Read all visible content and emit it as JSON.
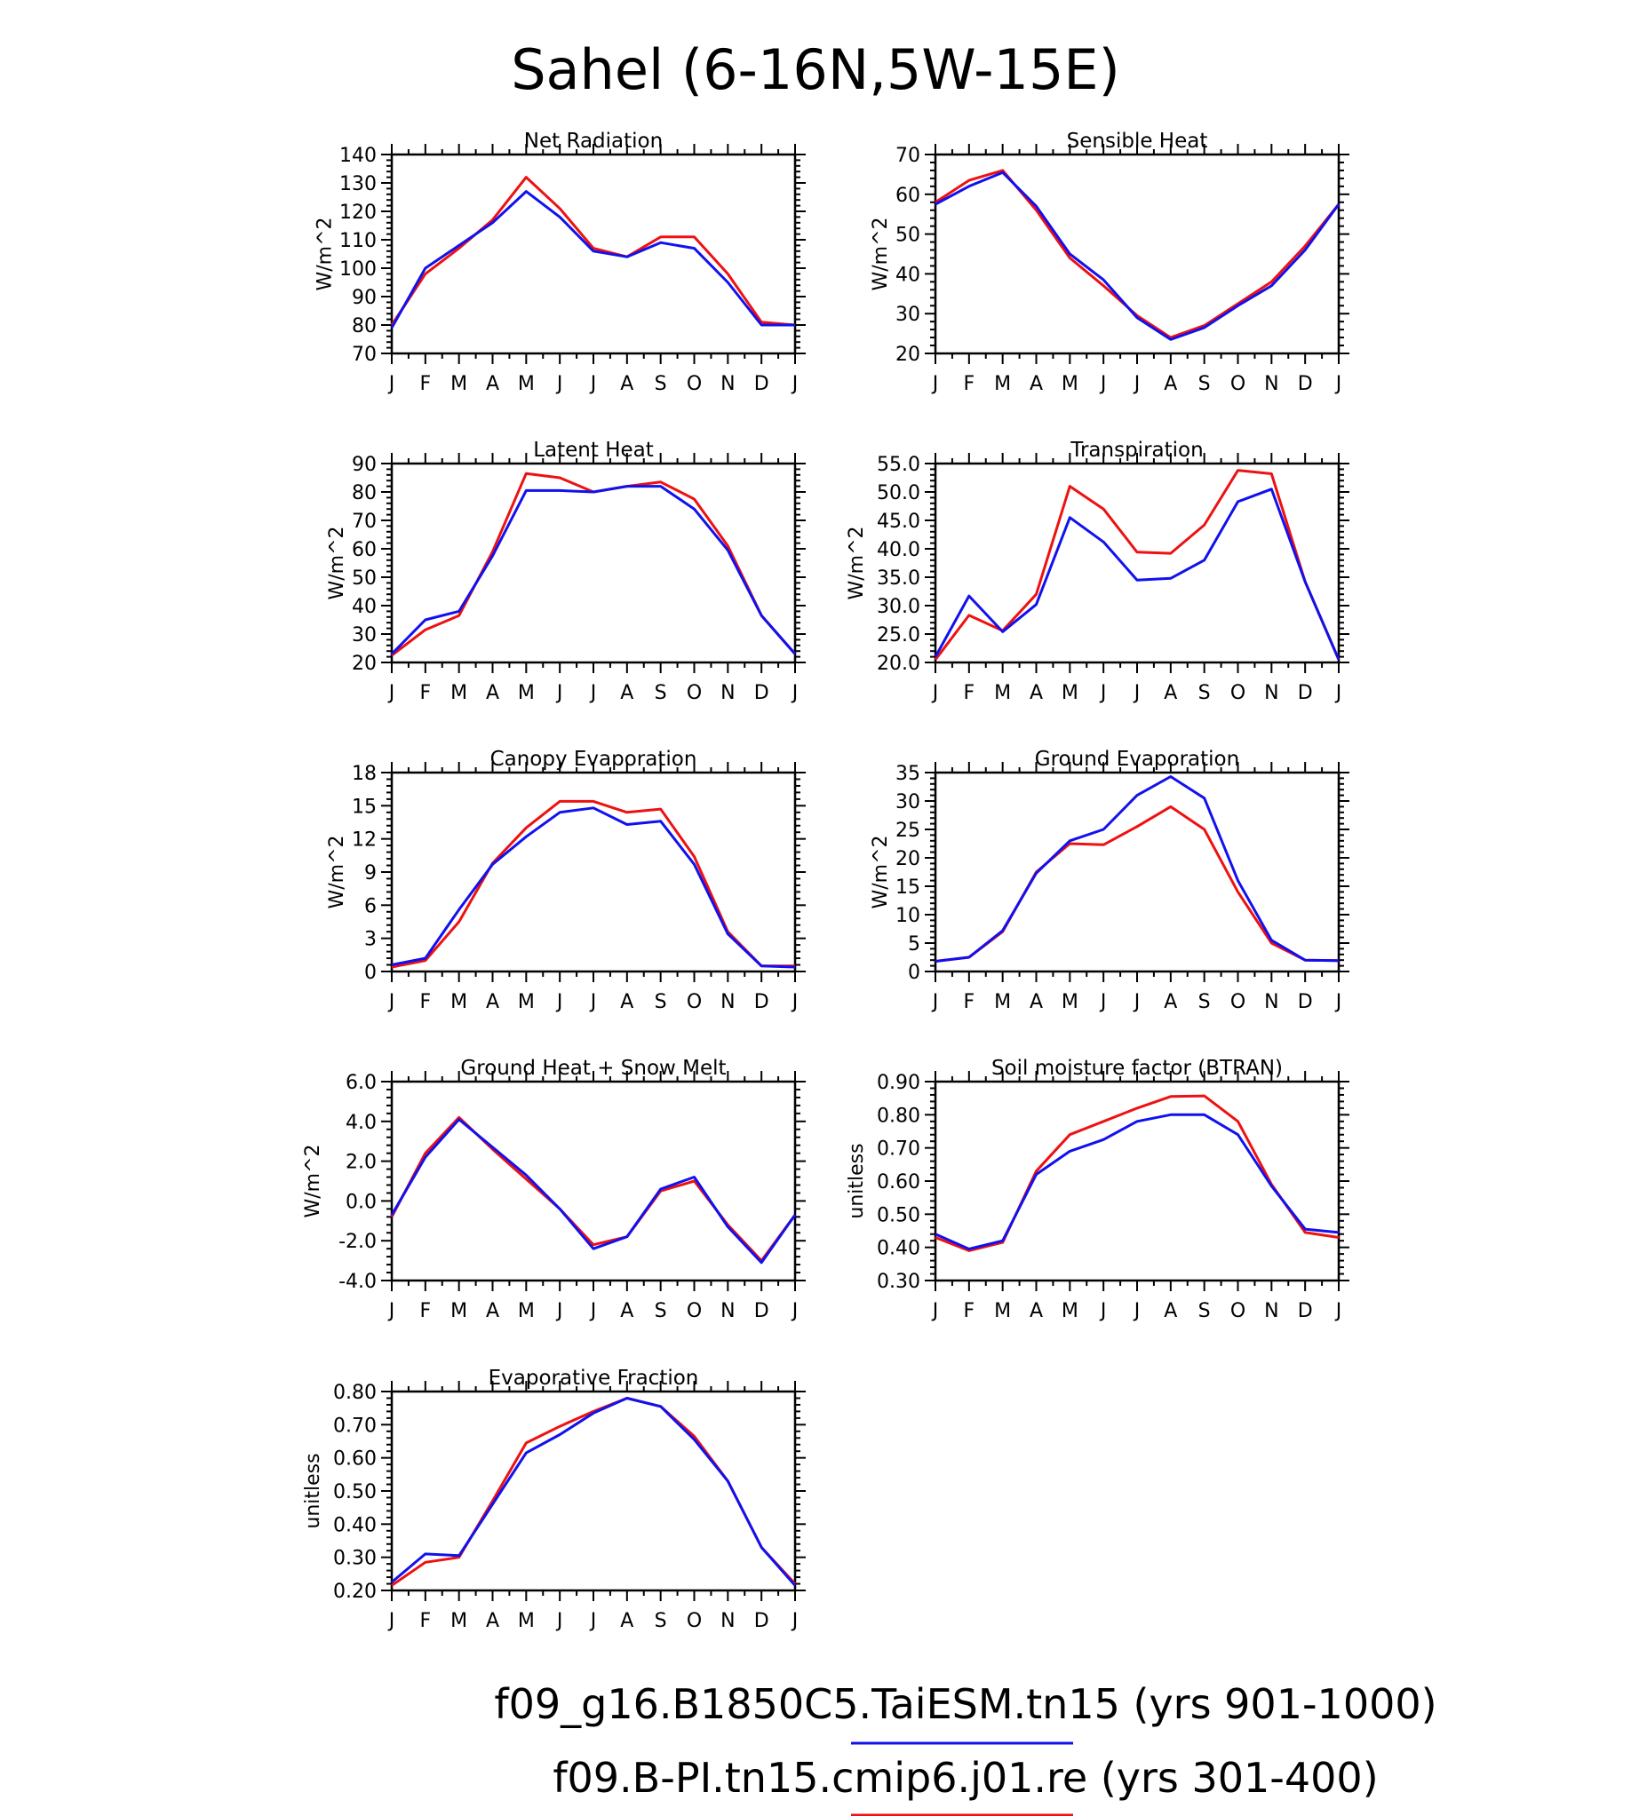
{
  "title": "Sahel (6-16N,5W-15E)",
  "colors": {
    "blue": "#1111ee",
    "red": "#ee1111"
  },
  "legend": [
    {
      "label": "f09_g16.B1850C5.TaiESM.tn15 (yrs 901-1000)",
      "color": "#1111ee"
    },
    {
      "label": "f09.B-PI.tn15.cmip6.j01.re (yrs 301-400)",
      "color": "#ee1111"
    }
  ],
  "chart_data": [
    {
      "type": "line",
      "title": "Net Radiation",
      "ylabel": "W/m^2",
      "ylim": [
        70,
        140
      ],
      "yticks": [
        "70",
        "80",
        "90",
        "100",
        "110",
        "120",
        "130",
        "140"
      ],
      "categories": [
        "J",
        "F",
        "M",
        "A",
        "M",
        "J",
        "J",
        "A",
        "S",
        "O",
        "N",
        "D",
        "J"
      ],
      "series": [
        {
          "color": "#ee1111",
          "values": [
            80,
            98,
            107,
            117,
            132,
            121,
            107,
            104,
            111,
            111,
            98,
            81,
            80
          ]
        },
        {
          "color": "#1111ee",
          "values": [
            79,
            100,
            108,
            116,
            127,
            118,
            106,
            104,
            109,
            107,
            95,
            80,
            80
          ]
        }
      ]
    },
    {
      "type": "line",
      "title": "Sensible Heat",
      "ylabel": "W/m^2",
      "ylim": [
        20,
        70
      ],
      "yticks": [
        "20",
        "30",
        "40",
        "50",
        "60",
        "70"
      ],
      "categories": [
        "J",
        "F",
        "M",
        "A",
        "M",
        "J",
        "J",
        "A",
        "S",
        "O",
        "N",
        "D",
        "J"
      ],
      "series": [
        {
          "color": "#ee1111",
          "values": [
            58,
            63.5,
            66,
            56,
            44,
            37,
            29.5,
            24,
            27,
            32.5,
            38,
            47,
            57.5
          ]
        },
        {
          "color": "#1111ee",
          "values": [
            57.5,
            62,
            65.5,
            57,
            45,
            38.5,
            29,
            23.5,
            26.5,
            32,
            37,
            46,
            57.5
          ]
        }
      ]
    },
    {
      "type": "line",
      "title": "Latent Heat",
      "ylabel": "W/m^2",
      "ylim": [
        20,
        90
      ],
      "yticks": [
        "20",
        "30",
        "40",
        "50",
        "60",
        "70",
        "80",
        "90"
      ],
      "categories": [
        "J",
        "F",
        "M",
        "A",
        "M",
        "J",
        "J",
        "A",
        "S",
        "O",
        "N",
        "D",
        "J"
      ],
      "series": [
        {
          "color": "#ee1111",
          "values": [
            22.5,
            31.5,
            36.5,
            59,
            86.5,
            85,
            80,
            82,
            83.5,
            77.5,
            61,
            36.5,
            23
          ]
        },
        {
          "color": "#1111ee",
          "values": [
            23,
            35,
            38,
            57.5,
            80.5,
            80.5,
            80,
            82,
            82,
            74,
            59.5,
            36.5,
            23
          ]
        }
      ]
    },
    {
      "type": "line",
      "title": "Transpiration",
      "ylabel": "W/m^2",
      "ylim": [
        20,
        55
      ],
      "yticks": [
        "20.0",
        "25.0",
        "30.0",
        "35.0",
        "40.0",
        "45.0",
        "50.0",
        "55.0"
      ],
      "categories": [
        "J",
        "F",
        "M",
        "A",
        "M",
        "J",
        "J",
        "A",
        "S",
        "O",
        "N",
        "D",
        "J"
      ],
      "series": [
        {
          "color": "#ee1111",
          "values": [
            20.5,
            28.3,
            25.6,
            32,
            51,
            47,
            39.4,
            39.2,
            44.2,
            53.8,
            53.2,
            34.2,
            20.5
          ]
        },
        {
          "color": "#1111ee",
          "values": [
            21,
            31.7,
            25.4,
            30.2,
            45.5,
            41.2,
            34.5,
            34.8,
            38,
            48.3,
            50.5,
            34.2,
            20.5
          ]
        }
      ]
    },
    {
      "type": "line",
      "title": "Canopy Evaporation",
      "ylabel": "W/m^2",
      "ylim": [
        0,
        18
      ],
      "yticks": [
        "0",
        "3",
        "6",
        "9",
        "12",
        "15",
        "18"
      ],
      "categories": [
        "J",
        "F",
        "M",
        "A",
        "M",
        "J",
        "J",
        "A",
        "S",
        "O",
        "N",
        "D",
        "J"
      ],
      "series": [
        {
          "color": "#ee1111",
          "values": [
            0.4,
            1,
            4.5,
            9.8,
            13,
            15.4,
            15.4,
            14.4,
            14.7,
            10.4,
            3.6,
            0.5,
            0.5
          ]
        },
        {
          "color": "#1111ee",
          "values": [
            0.6,
            1.2,
            5.6,
            9.7,
            12.2,
            14.4,
            14.8,
            13.3,
            13.6,
            9.7,
            3.4,
            0.5,
            0.4
          ]
        }
      ]
    },
    {
      "type": "line",
      "title": "Ground Evaporation",
      "ylabel": "W/m^2",
      "ylim": [
        0,
        35
      ],
      "yticks": [
        "0",
        "5",
        "10",
        "15",
        "20",
        "25",
        "30",
        "35"
      ],
      "categories": [
        "J",
        "F",
        "M",
        "A",
        "M",
        "J",
        "J",
        "A",
        "S",
        "O",
        "N",
        "D",
        "J"
      ],
      "series": [
        {
          "color": "#ee1111",
          "values": [
            1.8,
            2.5,
            7,
            17.5,
            22.5,
            22.3,
            25.5,
            29,
            25,
            14,
            5,
            2,
            1.9
          ]
        },
        {
          "color": "#1111ee",
          "values": [
            1.8,
            2.5,
            7.2,
            17.3,
            23,
            25,
            31,
            34.3,
            30.5,
            16,
            5.5,
            2,
            1.9
          ]
        }
      ]
    },
    {
      "type": "line",
      "title": "Ground Heat + Snow Melt",
      "ylabel": "W/m^2",
      "ylim": [
        -4,
        6
      ],
      "yticks": [
        "-4.0",
        "-2.0",
        "0.0",
        "2.0",
        "4.0",
        "6.0"
      ],
      "categories": [
        "J",
        "F",
        "M",
        "A",
        "M",
        "J",
        "J",
        "A",
        "S",
        "O",
        "N",
        "D",
        "J"
      ],
      "series": [
        {
          "color": "#ee1111",
          "values": [
            -0.8,
            2.4,
            4.2,
            2.6,
            1.1,
            -0.4,
            -2.2,
            -1.8,
            0.5,
            1,
            -1.2,
            -3,
            -0.7
          ]
        },
        {
          "color": "#1111ee",
          "values": [
            -0.7,
            2.2,
            4.1,
            2.7,
            1.3,
            -0.4,
            -2.4,
            -1.8,
            0.6,
            1.2,
            -1.3,
            -3.1,
            -0.7
          ]
        }
      ]
    },
    {
      "type": "line",
      "title": "Soil moisture factor (BTRAN)",
      "ylabel": "unitless",
      "ylim": [
        0.3,
        0.9
      ],
      "yticks": [
        "0.30",
        "0.40",
        "0.50",
        "0.60",
        "0.70",
        "0.80",
        "0.90"
      ],
      "categories": [
        "J",
        "F",
        "M",
        "A",
        "M",
        "J",
        "J",
        "A",
        "S",
        "O",
        "N",
        "D",
        "J"
      ],
      "series": [
        {
          "color": "#ee1111",
          "values": [
            0.43,
            0.39,
            0.415,
            0.63,
            0.74,
            0.78,
            0.82,
            0.855,
            0.857,
            0.78,
            0.59,
            0.445,
            0.43
          ]
        },
        {
          "color": "#1111ee",
          "values": [
            0.44,
            0.395,
            0.42,
            0.62,
            0.69,
            0.725,
            0.78,
            0.8,
            0.8,
            0.74,
            0.585,
            0.455,
            0.445
          ]
        }
      ]
    },
    {
      "type": "line",
      "title": "Evaporative Fraction",
      "ylabel": "unitless",
      "ylim": [
        0.2,
        0.8
      ],
      "yticks": [
        "0.20",
        "0.30",
        "0.40",
        "0.50",
        "0.60",
        "0.70",
        "0.80"
      ],
      "categories": [
        "J",
        "F",
        "M",
        "A",
        "M",
        "J",
        "J",
        "A",
        "S",
        "O",
        "N",
        "D",
        "J"
      ],
      "series": [
        {
          "color": "#ee1111",
          "values": [
            0.215,
            0.285,
            0.3,
            0.47,
            0.645,
            0.695,
            0.74,
            0.78,
            0.755,
            0.665,
            0.53,
            0.33,
            0.22
          ]
        },
        {
          "color": "#1111ee",
          "values": [
            0.225,
            0.31,
            0.305,
            0.46,
            0.615,
            0.67,
            0.735,
            0.78,
            0.755,
            0.655,
            0.53,
            0.33,
            0.215
          ]
        }
      ]
    }
  ]
}
